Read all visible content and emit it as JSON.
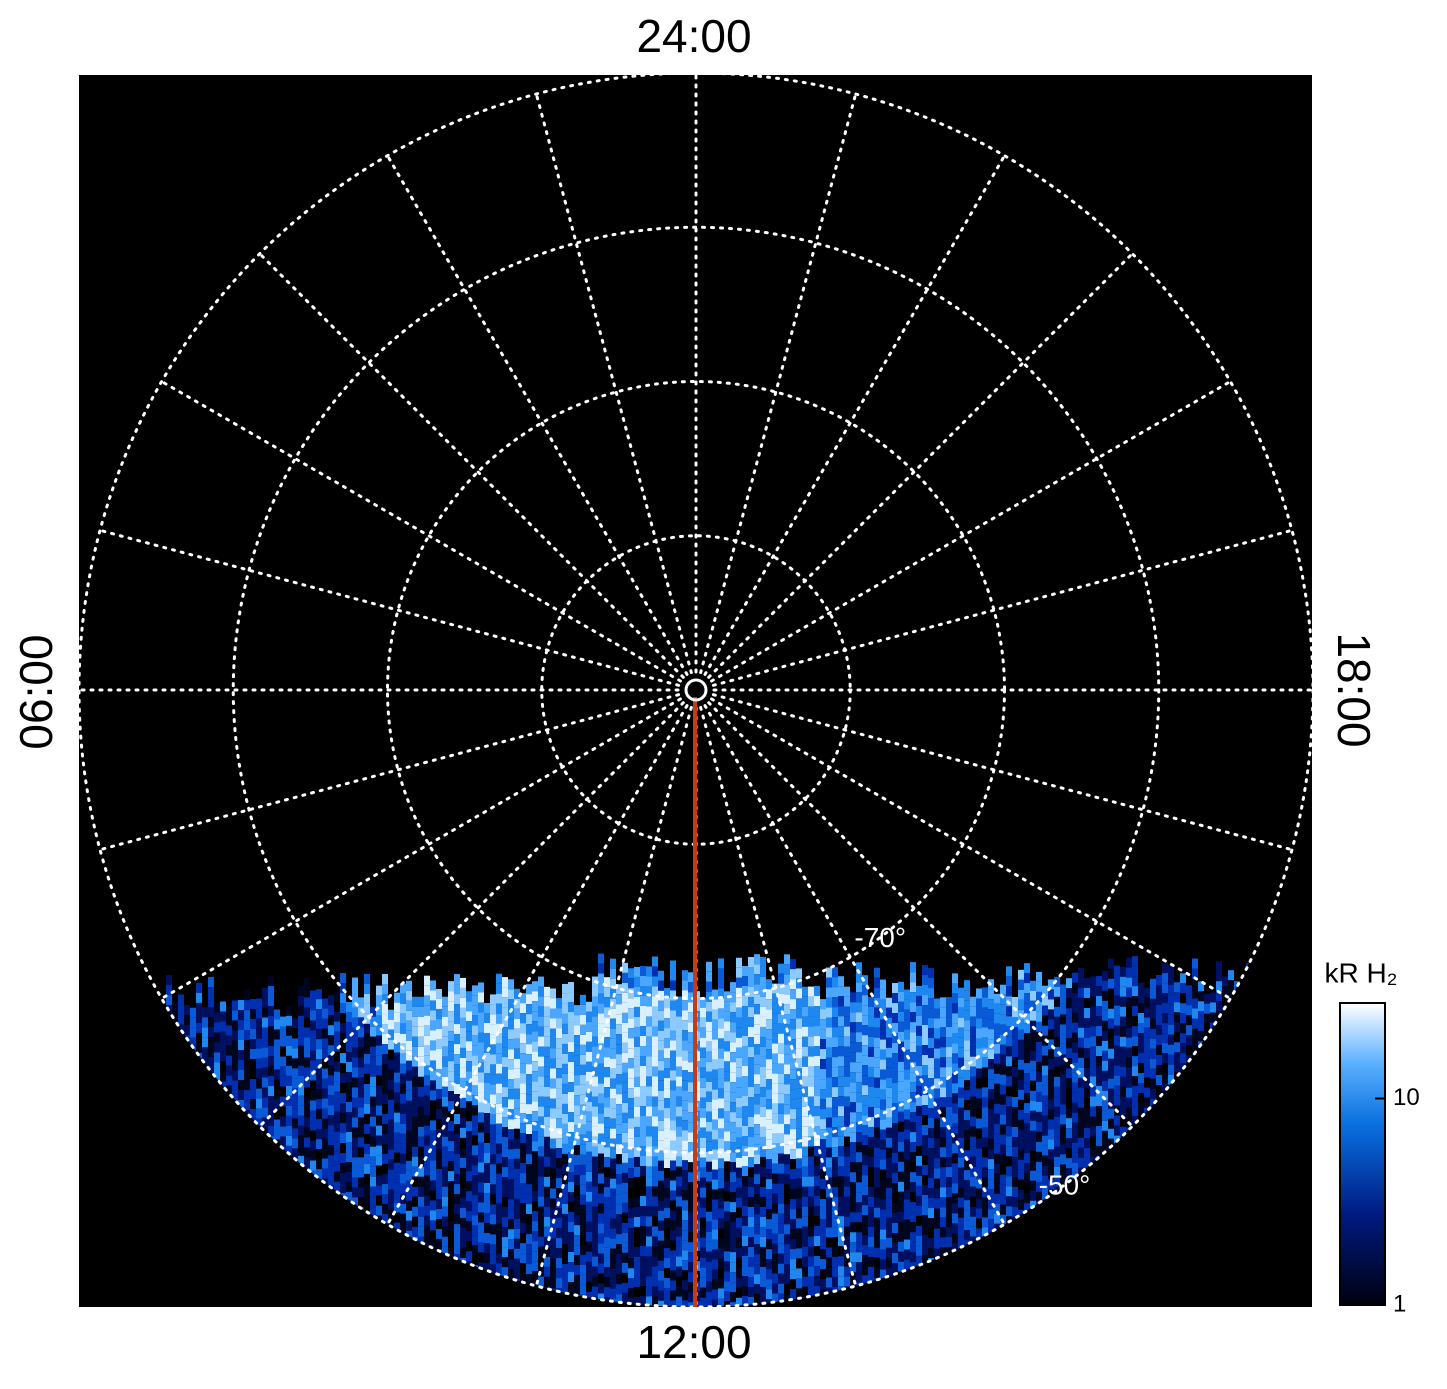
{
  "chart_data": {
    "type": "polar-image",
    "hour_labels": {
      "top": "24:00",
      "left": "06:00",
      "bottom": "12:00",
      "right": "18:00"
    },
    "rlim": [
      -90,
      -50
    ],
    "rgrid": [
      -80,
      -70,
      -60,
      -50
    ],
    "rlabels": [
      {
        "value": -70,
        "label": "-70°"
      },
      {
        "value": -50,
        "label": "-50°"
      }
    ],
    "colorbar": {
      "label": "kR H₂",
      "scale": "log",
      "lim": [
        1,
        29
      ],
      "ticks": [
        1,
        10
      ]
    }
  }
}
